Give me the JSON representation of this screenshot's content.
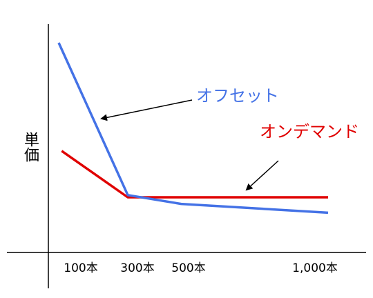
{
  "chart_data": {
    "type": "line",
    "title": "",
    "xlabel": "",
    "ylabel": "単価",
    "categories": [
      "100本",
      "300本",
      "500本",
      "1,000本"
    ],
    "x": [
      100,
      300,
      500,
      1000
    ],
    "xlim": [
      50,
      1050
    ],
    "ylim": [
      0,
      100
    ],
    "series": [
      {
        "name": "オフセット",
        "color": "#4472E6",
        "points": [
          [
            70,
            95
          ],
          [
            300,
            26
          ],
          [
            500,
            22
          ],
          [
            1050,
            18
          ]
        ]
      },
      {
        "name": "オンデマンド",
        "color": "#E00000",
        "points": [
          [
            80,
            46
          ],
          [
            300,
            25
          ],
          [
            1050,
            25
          ]
        ]
      }
    ],
    "grid": false,
    "legend": "none"
  }
}
